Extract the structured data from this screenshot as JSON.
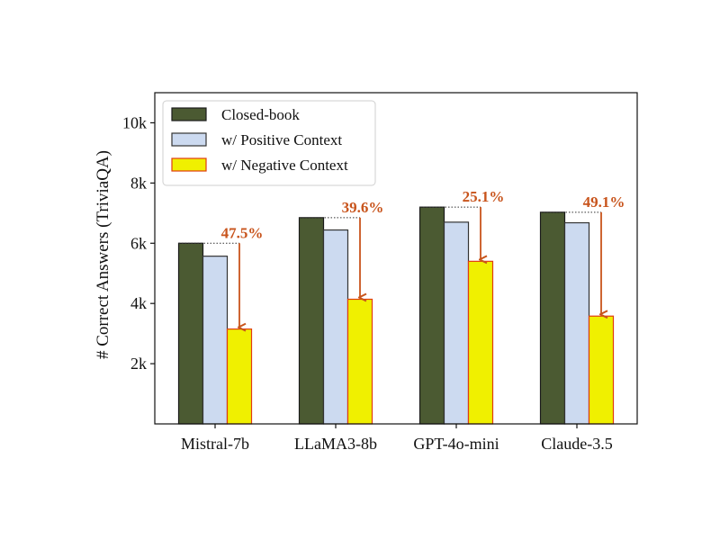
{
  "chart_data": {
    "type": "bar",
    "title": "",
    "xlabel": "",
    "ylabel": "# Correct Answers (TriviaQA)",
    "categories": [
      "Mistral-7b",
      "LLaMA3-8b",
      "GPT-4o-mini",
      "Claude-3.5"
    ],
    "ylim": [
      0,
      11000
    ],
    "yticks": [
      2000,
      4000,
      6000,
      8000,
      10000
    ],
    "ytick_labels": [
      "2k",
      "4k",
      "6k",
      "8k",
      "10k"
    ],
    "grid": false,
    "legend_position": "top-left",
    "series": [
      {
        "name": "Closed-book",
        "values": [
          6000,
          6850,
          7200,
          7030
        ],
        "color": "#4b5a32",
        "edge": "#1a1a1a"
      },
      {
        "name": "w/ Positive Context",
        "values": [
          5570,
          6440,
          6700,
          6680
        ],
        "color": "#ccdaf0",
        "edge": "#333333"
      },
      {
        "name": "w/ Negative Context",
        "values": [
          3150,
          4140,
          5400,
          3580
        ],
        "color": "#f0f000",
        "edge": "#e03c10"
      }
    ],
    "annotations": [
      {
        "category": "Mistral-7b",
        "label": "47.5%",
        "from": 6000,
        "to": 3150
      },
      {
        "category": "LLaMA3-8b",
        "label": "39.6%",
        "from": 6850,
        "to": 4140
      },
      {
        "category": "GPT-4o-mini",
        "label": "25.1%",
        "from": 7200,
        "to": 5400
      },
      {
        "category": "Claude-3.5",
        "label": "49.1%",
        "from": 7030,
        "to": 3580
      }
    ],
    "annotation_color": "#c8541c"
  }
}
